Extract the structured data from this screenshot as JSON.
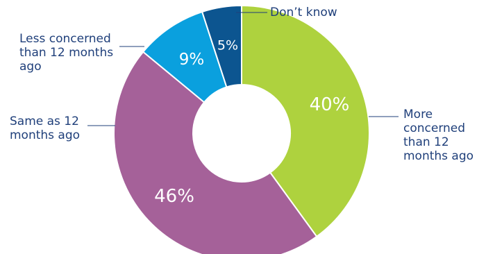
{
  "chart_data": {
    "type": "pie",
    "donut": true,
    "categories": [
      "More concerned than 12 months ago",
      "Same as 12 months ago",
      "Less concerned than 12 months ago",
      "Don’t know"
    ],
    "values": [
      40,
      46,
      9,
      5
    ],
    "value_labels": [
      "40%",
      "46%",
      "9%",
      "5%"
    ],
    "label_lines": [
      [
        "More",
        "concerned",
        "than 12",
        "months ago"
      ],
      [
        "Same as 12",
        "months ago"
      ],
      [
        "Less concerned",
        "than 12 months",
        "ago"
      ],
      [
        "Don’t know"
      ]
    ],
    "colors": [
      "#aed23e",
      "#a56199",
      "#0aa0de",
      "#0c5590"
    ],
    "title": "",
    "legend": "none"
  }
}
